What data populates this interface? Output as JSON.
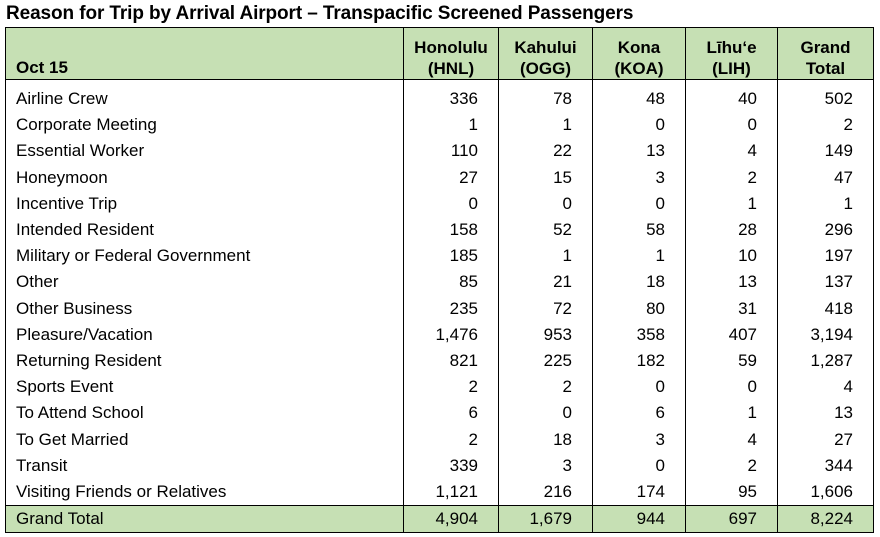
{
  "title": "Reason for Trip by Arrival Airport – Transpacific Screened Passengers",
  "header": {
    "corner": "Oct 15",
    "columns": [
      {
        "line1": "Honolulu",
        "line2": "(HNL)"
      },
      {
        "line1": "Kahului",
        "line2": "(OGG)"
      },
      {
        "line1": "Kona",
        "line2": "(KOA)"
      },
      {
        "line1": "Līhu‘e",
        "line2": "(LIH)"
      },
      {
        "line1": "Grand",
        "line2": "Total"
      }
    ]
  },
  "rows": [
    {
      "label": "Airline Crew",
      "values": [
        "336",
        "78",
        "48",
        "40",
        "502"
      ]
    },
    {
      "label": "Corporate Meeting",
      "values": [
        "1",
        "1",
        "0",
        "0",
        "2"
      ]
    },
    {
      "label": "Essential Worker",
      "values": [
        "110",
        "22",
        "13",
        "4",
        "149"
      ]
    },
    {
      "label": "Honeymoon",
      "values": [
        "27",
        "15",
        "3",
        "2",
        "47"
      ]
    },
    {
      "label": "Incentive Trip",
      "values": [
        "0",
        "0",
        "0",
        "1",
        "1"
      ]
    },
    {
      "label": "Intended Resident",
      "values": [
        "158",
        "52",
        "58",
        "28",
        "296"
      ]
    },
    {
      "label": "Military or Federal Government",
      "values": [
        "185",
        "1",
        "1",
        "10",
        "197"
      ]
    },
    {
      "label": "Other",
      "values": [
        "85",
        "21",
        "18",
        "13",
        "137"
      ]
    },
    {
      "label": "Other Business",
      "values": [
        "235",
        "72",
        "80",
        "31",
        "418"
      ]
    },
    {
      "label": "Pleasure/Vacation",
      "values": [
        "1,476",
        "953",
        "358",
        "407",
        "3,194"
      ]
    },
    {
      "label": "Returning Resident",
      "values": [
        "821",
        "225",
        "182",
        "59",
        "1,287"
      ]
    },
    {
      "label": "Sports Event",
      "values": [
        "2",
        "2",
        "0",
        "0",
        "4"
      ]
    },
    {
      "label": "To Attend School",
      "values": [
        "6",
        "0",
        "6",
        "1",
        "13"
      ]
    },
    {
      "label": "To Get Married",
      "values": [
        "2",
        "18",
        "3",
        "4",
        "27"
      ]
    },
    {
      "label": "Transit",
      "values": [
        "339",
        "3",
        "0",
        "2",
        "344"
      ]
    },
    {
      "label": "Visiting Friends or Relatives",
      "values": [
        "1,121",
        "216",
        "174",
        "95",
        "1,606"
      ]
    }
  ],
  "total": {
    "label": "Grand Total",
    "values": [
      "4,904",
      "1,679",
      "944",
      "697",
      "8,224"
    ]
  },
  "colors": {
    "header_bg": "#c6e0b4",
    "border": "#000000"
  }
}
